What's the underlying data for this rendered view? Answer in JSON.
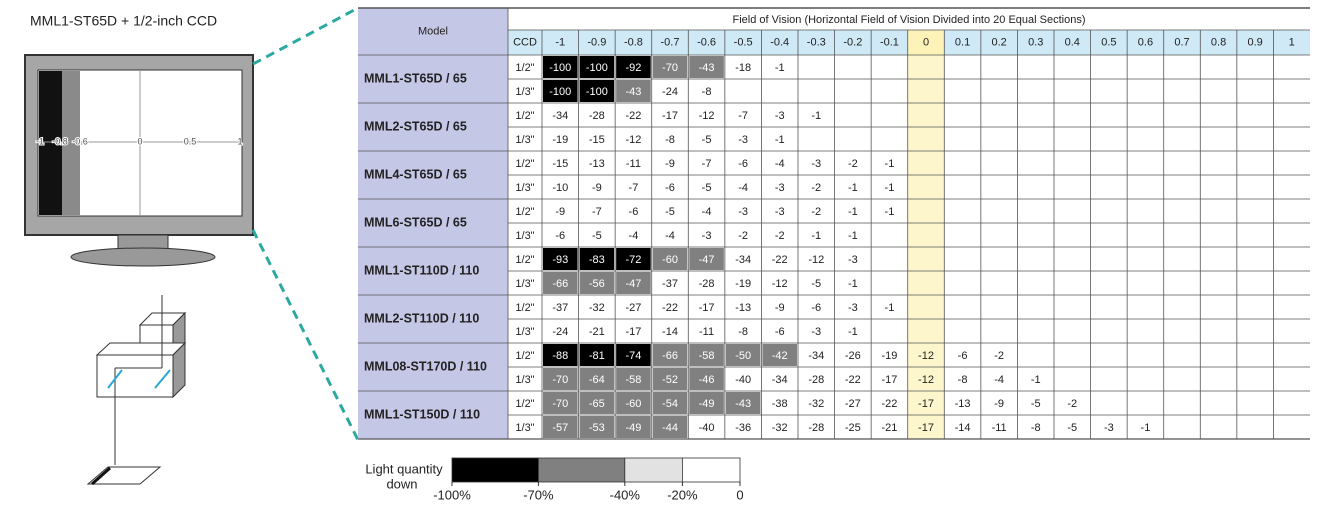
{
  "left": {
    "title": "MML1-ST65D + 1/2-inch CCD",
    "screen_ticks": [
      -1,
      -0.8,
      -0.6,
      0,
      0.5,
      1
    ]
  },
  "table": {
    "model_header": "Model",
    "fov_header": "Field of Vision (Horizontal Field of Vision Divided into 20 Equal Sections)",
    "ccd_header": "CCD",
    "columns": [
      -1,
      -0.9,
      -0.8,
      -0.7,
      -0.6,
      -0.5,
      -0.4,
      -0.3,
      -0.2,
      -0.1,
      0,
      0.1,
      0.2,
      0.3,
      0.4,
      0.5,
      0.6,
      0.7,
      0.8,
      0.9,
      1
    ],
    "models": [
      {
        "name": "MML1-ST65D / 65",
        "rows": [
          {
            "ccd": "1/2\"",
            "values": [
              -100,
              -100,
              -92,
              -70,
              -43,
              -18,
              -1,
              null,
              null,
              null,
              null,
              null,
              null,
              null,
              null,
              null,
              null,
              null,
              null,
              null,
              null
            ]
          },
          {
            "ccd": "1/3\"",
            "values": [
              -100,
              -100,
              -43,
              -24,
              -8,
              null,
              null,
              null,
              null,
              null,
              null,
              null,
              null,
              null,
              null,
              null,
              null,
              null,
              null,
              null,
              null
            ]
          }
        ]
      },
      {
        "name": "MML2-ST65D / 65",
        "rows": [
          {
            "ccd": "1/2\"",
            "values": [
              -34,
              -28,
              -22,
              -17,
              -12,
              -7,
              -3,
              -1,
              null,
              null,
              null,
              null,
              null,
              null,
              null,
              null,
              null,
              null,
              null,
              null,
              null
            ]
          },
          {
            "ccd": "1/3\"",
            "values": [
              -19,
              -15,
              -12,
              -8,
              -5,
              -3,
              -1,
              null,
              null,
              null,
              null,
              null,
              null,
              null,
              null,
              null,
              null,
              null,
              null,
              null,
              null
            ]
          }
        ]
      },
      {
        "name": "MML4-ST65D / 65",
        "rows": [
          {
            "ccd": "1/2\"",
            "values": [
              -15,
              -13,
              -11,
              -9,
              -7,
              -6,
              -4,
              -3,
              -2,
              -1,
              null,
              null,
              null,
              null,
              null,
              null,
              null,
              null,
              null,
              null,
              null
            ]
          },
          {
            "ccd": "1/3\"",
            "values": [
              -10,
              -9,
              -7,
              -6,
              -5,
              -4,
              -3,
              -2,
              -1,
              -1,
              null,
              null,
              null,
              null,
              null,
              null,
              null,
              null,
              null,
              null,
              null
            ]
          }
        ]
      },
      {
        "name": "MML6-ST65D / 65",
        "rows": [
          {
            "ccd": "1/2\"",
            "values": [
              -9,
              -7,
              -6,
              -5,
              -4,
              -3,
              -3,
              -2,
              -1,
              -1,
              null,
              null,
              null,
              null,
              null,
              null,
              null,
              null,
              null,
              null,
              null
            ]
          },
          {
            "ccd": "1/3\"",
            "values": [
              -6,
              -5,
              -4,
              -4,
              -3,
              -2,
              -2,
              -1,
              -1,
              null,
              null,
              null,
              null,
              null,
              null,
              null,
              null,
              null,
              null,
              null,
              null
            ]
          }
        ]
      },
      {
        "name": "MML1-ST110D / 110",
        "rows": [
          {
            "ccd": "1/2\"",
            "values": [
              -93,
              -83,
              -72,
              -60,
              -47,
              -34,
              -22,
              -12,
              -3,
              null,
              null,
              null,
              null,
              null,
              null,
              null,
              null,
              null,
              null,
              null,
              null
            ]
          },
          {
            "ccd": "1/3\"",
            "values": [
              -66,
              -56,
              -47,
              -37,
              -28,
              -19,
              -12,
              -5,
              -1,
              null,
              null,
              null,
              null,
              null,
              null,
              null,
              null,
              null,
              null,
              null,
              null
            ]
          }
        ]
      },
      {
        "name": "MML2-ST110D / 110",
        "rows": [
          {
            "ccd": "1/2\"",
            "values": [
              -37,
              -32,
              -27,
              -22,
              -17,
              -13,
              -9,
              -6,
              -3,
              -1,
              null,
              null,
              null,
              null,
              null,
              null,
              null,
              null,
              null,
              null,
              null
            ]
          },
          {
            "ccd": "1/3\"",
            "values": [
              -24,
              -21,
              -17,
              -14,
              -11,
              -8,
              -6,
              -3,
              -1,
              null,
              null,
              null,
              null,
              null,
              null,
              null,
              null,
              null,
              null,
              null,
              null
            ]
          }
        ]
      },
      {
        "name": "MML08-ST170D / 110",
        "rows": [
          {
            "ccd": "1/2\"",
            "values": [
              -88,
              -81,
              -74,
              -66,
              -58,
              -50,
              -42,
              -34,
              -26,
              -19,
              -12,
              -6,
              -2,
              null,
              null,
              null,
              null,
              null,
              null,
              null,
              null
            ]
          },
          {
            "ccd": "1/3\"",
            "values": [
              -70,
              -64,
              -58,
              -52,
              -46,
              -40,
              -34,
              -28,
              -22,
              -17,
              -12,
              -8,
              -4,
              -1,
              null,
              null,
              null,
              null,
              null,
              null,
              null
            ]
          }
        ]
      },
      {
        "name": "MML1-ST150D / 110",
        "rows": [
          {
            "ccd": "1/2\"",
            "values": [
              -70,
              -65,
              -60,
              -54,
              -49,
              -43,
              -38,
              -32,
              -27,
              -22,
              -17,
              -13,
              -9,
              -5,
              -2,
              null,
              null,
              null,
              null,
              null,
              null
            ]
          },
          {
            "ccd": "1/3\"",
            "values": [
              -57,
              -53,
              -49,
              -44,
              -40,
              -36,
              -32,
              -28,
              -25,
              -21,
              -17,
              -14,
              -11,
              -8,
              -5,
              -3,
              -1,
              null,
              null,
              null,
              null
            ]
          }
        ]
      }
    ]
  },
  "legend": {
    "label_lines": [
      "Light quantity",
      "down"
    ],
    "ticks": [
      {
        "value": -100,
        "label": "-100%"
      },
      {
        "value": -70,
        "label": "-70%"
      },
      {
        "value": -40,
        "label": "-40%"
      },
      {
        "value": -20,
        "label": "-20%"
      },
      0
    ],
    "colors": [
      "#000000",
      "#808080",
      "#e2e2e2",
      "#ffffff"
    ]
  }
}
